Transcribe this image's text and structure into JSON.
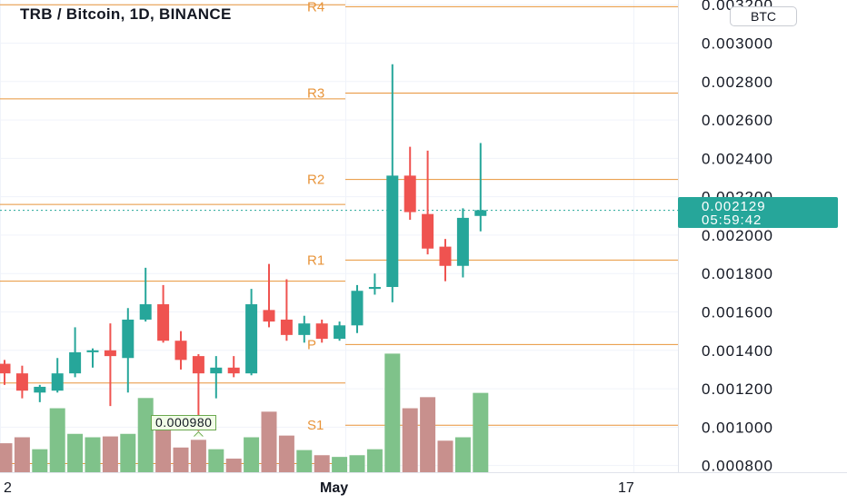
{
  "header": {
    "title": "TRB / Bitcoin, 1D, BINANCE",
    "currency_badge": "BTC"
  },
  "price_tag": {
    "price": "0.002129",
    "countdown": "05:59:42"
  },
  "low_marker": {
    "label": "0.000980"
  },
  "colors": {
    "up": "#26a69a",
    "down": "#ef5350",
    "volume_up": "#7fc28a",
    "volume_down": "#c8908d",
    "pivot_line": "#e8943a",
    "pivot_text": "#e8943a",
    "grid": "#f0f3fa",
    "axis_text": "#131722"
  },
  "chart_data": {
    "type": "candlestick",
    "symbol": "TRB / Bitcoin",
    "interval": "1D",
    "exchange": "BINANCE",
    "y_axis": {
      "ticks": [
        "0.000800",
        "0.001000",
        "0.001200",
        "0.001400",
        "0.001600",
        "0.001800",
        "0.002000",
        "0.002200",
        "0.002400",
        "0.002600",
        "0.002800",
        "0.003000",
        "0.003200"
      ],
      "tick_values": [
        0.0008,
        0.001,
        0.0012,
        0.0014,
        0.0016,
        0.0018,
        0.002,
        0.0022,
        0.0024,
        0.0026,
        0.0028,
        0.003,
        0.0032
      ],
      "range": [
        0.00068,
        0.00322
      ],
      "side": "right"
    },
    "x_axis": {
      "ticks": [
        "2",
        "May",
        "17"
      ]
    },
    "candles": [
      {
        "o": 0.00133,
        "h": 0.00135,
        "l": 0.00122,
        "c": 0.00128
      },
      {
        "o": 0.00128,
        "h": 0.00132,
        "l": 0.00115,
        "c": 0.00119
      },
      {
        "o": 0.00118,
        "h": 0.00122,
        "l": 0.00113,
        "c": 0.00121
      },
      {
        "o": 0.00119,
        "h": 0.00136,
        "l": 0.00118,
        "c": 0.00128
      },
      {
        "o": 0.00128,
        "h": 0.00152,
        "l": 0.00126,
        "c": 0.00139
      },
      {
        "o": 0.00139,
        "h": 0.00141,
        "l": 0.00131,
        "c": 0.0014
      },
      {
        "o": 0.0014,
        "h": 0.00154,
        "l": 0.00111,
        "c": 0.00137
      },
      {
        "o": 0.00136,
        "h": 0.00162,
        "l": 0.00118,
        "c": 0.00156
      },
      {
        "o": 0.00156,
        "h": 0.00183,
        "l": 0.00155,
        "c": 0.00164
      },
      {
        "o": 0.00164,
        "h": 0.00174,
        "l": 0.00144,
        "c": 0.00145
      },
      {
        "o": 0.00145,
        "h": 0.0015,
        "l": 0.0013,
        "c": 0.00135
      },
      {
        "o": 0.00137,
        "h": 0.00138,
        "l": 0.00098,
        "c": 0.00128
      },
      {
        "o": 0.00128,
        "h": 0.00137,
        "l": 0.00115,
        "c": 0.00131
      },
      {
        "o": 0.00131,
        "h": 0.00137,
        "l": 0.00126,
        "c": 0.00128
      },
      {
        "o": 0.00128,
        "h": 0.00172,
        "l": 0.00127,
        "c": 0.00164
      },
      {
        "o": 0.00161,
        "h": 0.00185,
        "l": 0.00152,
        "c": 0.00155
      },
      {
        "o": 0.00156,
        "h": 0.00177,
        "l": 0.00145,
        "c": 0.00148
      },
      {
        "o": 0.00148,
        "h": 0.00158,
        "l": 0.00144,
        "c": 0.00154
      },
      {
        "o": 0.00154,
        "h": 0.00156,
        "l": 0.00144,
        "c": 0.00146
      },
      {
        "o": 0.00146,
        "h": 0.00155,
        "l": 0.00145,
        "c": 0.00153
      },
      {
        "o": 0.00153,
        "h": 0.00174,
        "l": 0.00149,
        "c": 0.00171
      },
      {
        "o": 0.00172,
        "h": 0.0018,
        "l": 0.00169,
        "c": 0.00173
      },
      {
        "o": 0.00173,
        "h": 0.00289,
        "l": 0.00165,
        "c": 0.00231
      },
      {
        "o": 0.00231,
        "h": 0.00246,
        "l": 0.00208,
        "c": 0.00212
      },
      {
        "o": 0.00211,
        "h": 0.00244,
        "l": 0.0019,
        "c": 0.00193
      },
      {
        "o": 0.00194,
        "h": 0.00198,
        "l": 0.00176,
        "c": 0.00184
      },
      {
        "o": 0.00184,
        "h": 0.00214,
        "l": 0.00178,
        "c": 0.00209
      },
      {
        "o": 0.0021,
        "h": 0.00248,
        "l": 0.00202,
        "c": 0.00213
      }
    ],
    "volumes": [
      0.35,
      0.42,
      0.28,
      0.76,
      0.46,
      0.42,
      0.43,
      0.46,
      0.88,
      0.62,
      0.3,
      0.39,
      0.28,
      0.17,
      0.42,
      0.72,
      0.44,
      0.27,
      0.21,
      0.19,
      0.21,
      0.28,
      1.4,
      0.76,
      0.89,
      0.38,
      0.42,
      0.94
    ],
    "pivot_levels": [
      {
        "label": "R4",
        "value": 0.00319
      },
      {
        "label": "R3",
        "value": 0.00274
      },
      {
        "label": "R2",
        "value": 0.00229
      },
      {
        "label": "R1",
        "value": 0.00187
      },
      {
        "label": "P",
        "value": 0.00143
      },
      {
        "label": "S1",
        "value": 0.00101
      }
    ],
    "prior_pivot_levels": [
      0.0032,
      0.00271,
      0.00216,
      0.00176,
      0.00123,
      0.00081
    ],
    "last_price": 0.002129,
    "low_marker_value": 0.00098
  }
}
